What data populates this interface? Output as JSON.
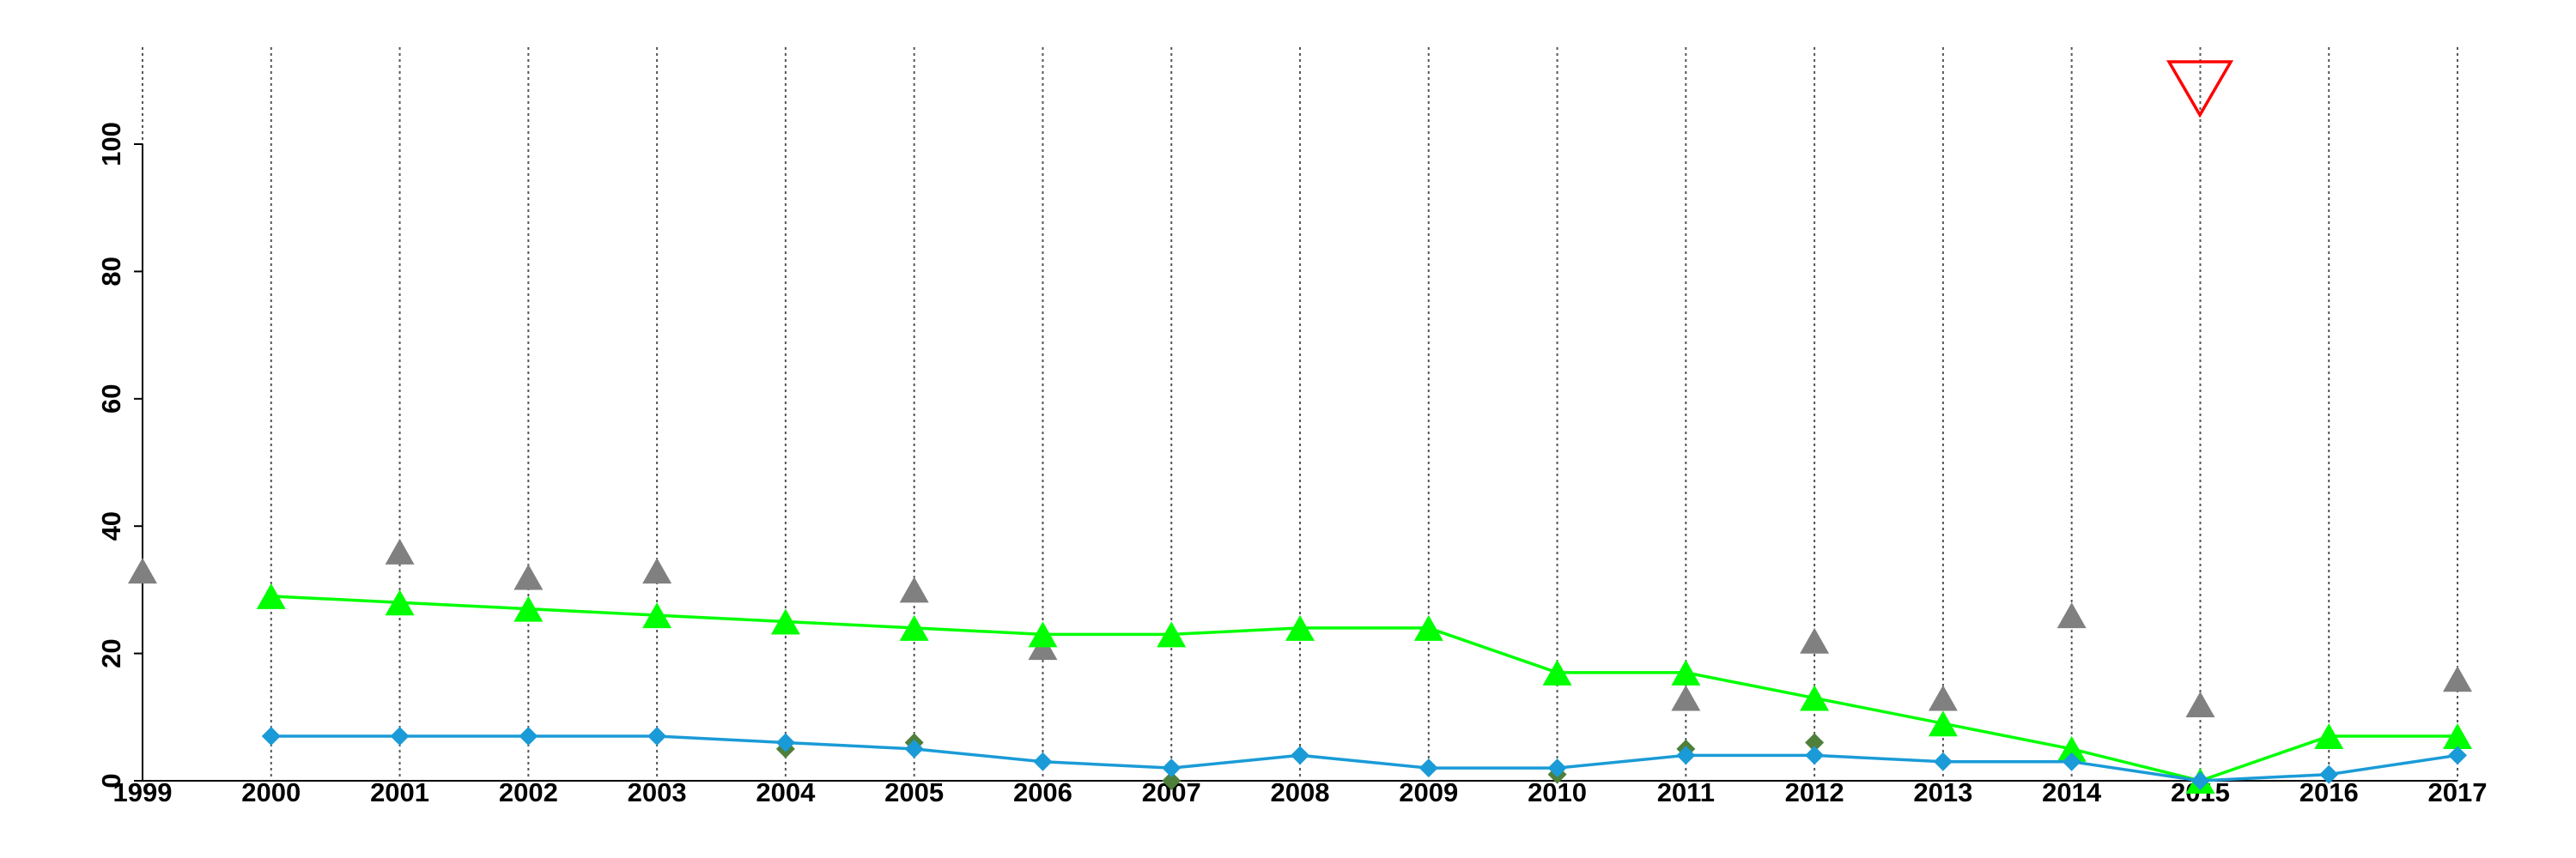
{
  "chart_data": {
    "type": "line",
    "x": [
      1999,
      2000,
      2001,
      2002,
      2003,
      2004,
      2005,
      2006,
      2007,
      2008,
      2009,
      2010,
      2011,
      2012,
      2013,
      2014,
      2015,
      2016,
      2017
    ],
    "xlim": [
      1999,
      2017
    ],
    "xticks": [
      1999,
      2000,
      2001,
      2002,
      2003,
      2004,
      2005,
      2006,
      2007,
      2008,
      2009,
      2010,
      2011,
      2012,
      2013,
      2014,
      2015,
      2016,
      2017
    ],
    "ylim": [
      0,
      100
    ],
    "yticks": [
      0,
      20,
      40,
      60,
      80,
      100
    ],
    "grid": "x",
    "series": [
      {
        "color": "#808080",
        "marker": "triangle",
        "line": false,
        "values": [
          33,
          null,
          36,
          32,
          33,
          null,
          30,
          21,
          null,
          null,
          null,
          null,
          13,
          22,
          13,
          26,
          12,
          null,
          16
        ]
      },
      {
        "color": "#4f7f3a",
        "marker": "diamond",
        "line": false,
        "values": [
          null,
          null,
          null,
          null,
          null,
          5,
          6,
          null,
          0,
          null,
          null,
          1,
          5,
          6,
          null,
          null,
          null,
          null,
          null
        ]
      },
      {
        "color": "#00ff00",
        "marker": "triangle",
        "line": true,
        "values": [
          null,
          29,
          28,
          27,
          26,
          25,
          24,
          23,
          23,
          24,
          24,
          17,
          17,
          13,
          9,
          5,
          0,
          7,
          7
        ]
      },
      {
        "color": "#1a9bd7",
        "marker": "diamond",
        "line": true,
        "values": [
          null,
          7,
          7,
          7,
          7,
          6,
          5,
          3,
          2,
          4,
          2,
          2,
          4,
          4,
          3,
          3,
          0,
          1,
          4
        ]
      }
    ]
  }
}
